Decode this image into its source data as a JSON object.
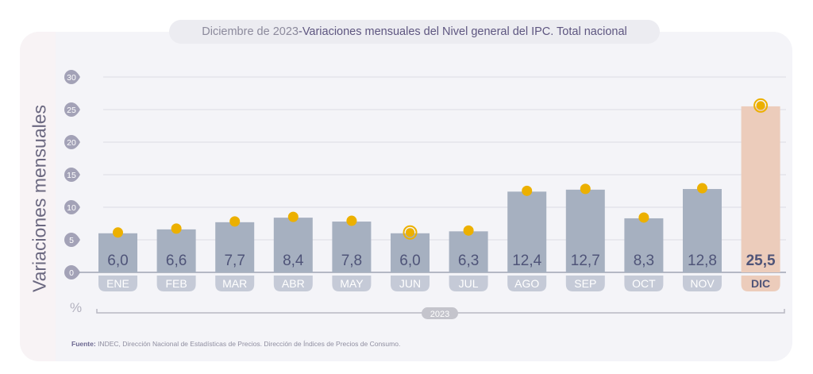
{
  "title": {
    "prefix": "Diciembre de 2023",
    "separator": " - ",
    "main": "Variaciones mensuales del Nivel general del IPC. Total nacional"
  },
  "source": {
    "label": "Fuente:",
    "text": " INDEC, Dirección Nacional de Estadísticas de Precios. Dirección de Índices de Precios de Consumo."
  },
  "colors": {
    "bar": "#a6b0c0",
    "bar_highlight": "#ecccbb",
    "marker": "#ecb000",
    "value_text": "#4f5478",
    "month_pill": "#c5cad7",
    "month_pill_highlight": "#ecccbb",
    "tick_bubble": "#a3a2b7"
  },
  "chart_data": {
    "type": "bar",
    "title": "Diciembre de 2023 - Variaciones mensuales del Nivel general del IPC. Total nacional",
    "xlabel": "2023",
    "ylabel": "Variaciones mensuales",
    "yunit": "%",
    "ylim": [
      0,
      30
    ],
    "yticks": [
      0,
      5,
      10,
      15,
      20,
      25,
      30
    ],
    "grid": true,
    "categories": [
      "ENE",
      "FEB",
      "MAR",
      "ABR",
      "MAY",
      "JUN",
      "JUL",
      "AGO",
      "SEP",
      "OCT",
      "NOV",
      "DIC"
    ],
    "values": [
      6.0,
      6.6,
      7.7,
      8.4,
      7.8,
      6.0,
      6.3,
      12.4,
      12.7,
      8.3,
      12.8,
      25.5
    ],
    "value_labels": [
      "6,0",
      "6,6",
      "7,7",
      "8,4",
      "7,8",
      "6,0",
      "6,3",
      "12,4",
      "12,7",
      "8,3",
      "12,8",
      "25,5"
    ],
    "highlighted": [
      "DIC"
    ],
    "ringed_markers": [
      "JUN",
      "DIC"
    ]
  }
}
